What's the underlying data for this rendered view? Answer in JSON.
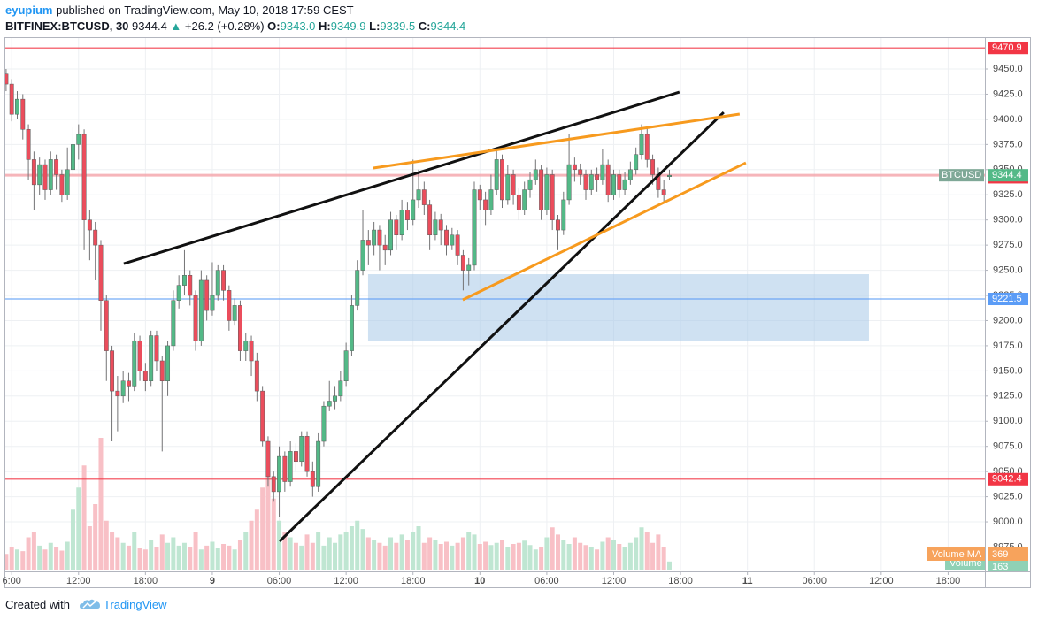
{
  "header": {
    "author": "eyupium",
    "published": "published on TradingView.com, May 10, 2018 17:59 CEST",
    "symbol": "BITFINEX:BTCUSD, 30",
    "last": "9344.4",
    "arrow": "▲",
    "change": "+26.2 (+0.28%)",
    "o_label": "O:",
    "o": "9343.0",
    "h_label": "H:",
    "h": "9349.9",
    "l_label": "L:",
    "l": "9339.5",
    "c_label": "C:",
    "c": "9344.4"
  },
  "footer": {
    "created": "Created with",
    "brand": "TradingView"
  },
  "chart_data": {
    "type": "candlestick",
    "up_color": "#53b987",
    "down_color": "#eb4d5c",
    "up_volume_color": "#bfe6d2",
    "down_volume_color": "#f8c0c6",
    "x": [
      -18.5,
      -18,
      -17.5,
      -17,
      -16.5,
      -16,
      -15.5,
      -15,
      -14.5,
      -14,
      -13.5,
      -13,
      -12.5,
      -12,
      -11.5,
      -11,
      -10.5,
      -10,
      -9.5,
      -9,
      -8.5,
      -8,
      -7.5,
      -7,
      -6.5,
      -6,
      -5.5,
      -5,
      -4.5,
      -4,
      -3.5,
      -3,
      -2.5,
      -2,
      -1.5,
      -1,
      -0.5,
      0,
      0.5,
      1,
      1.5,
      2,
      2.5,
      3,
      3.5,
      4,
      4.5,
      5,
      5.5,
      6,
      6.5,
      7,
      7.5,
      8,
      8.5,
      9,
      9.5,
      10,
      10.5,
      11,
      11.5,
      12,
      12.5,
      13,
      13.5,
      14,
      14.5,
      15,
      15.5,
      16,
      16.5,
      17,
      17.5,
      18,
      18.5,
      19,
      19.5,
      20,
      20.5,
      21,
      21.5,
      22,
      22.5,
      23,
      23.5,
      24,
      24.5,
      25,
      25.5,
      26,
      26.5,
      27,
      27.5,
      28,
      28.5,
      29,
      29.5,
      30,
      30.5,
      31,
      31.5,
      32,
      32.5,
      33,
      33.5,
      34,
      34.5,
      35,
      35.5,
      36,
      36.5,
      37,
      37.5,
      38,
      38.5,
      39,
      39.5,
      40,
      40.5,
      41
    ],
    "ohlc": [
      [
        9445,
        9450,
        9428,
        9435
      ],
      [
        9435,
        9440,
        9398,
        9405
      ],
      [
        9405,
        9428,
        9400,
        9420
      ],
      [
        9420,
        9425,
        9380,
        9390
      ],
      [
        9390,
        9395,
        9340,
        9360
      ],
      [
        9360,
        9368,
        9310,
        9335
      ],
      [
        9335,
        9362,
        9325,
        9355
      ],
      [
        9355,
        9360,
        9320,
        9330
      ],
      [
        9330,
        9368,
        9325,
        9360
      ],
      [
        9360,
        9365,
        9330,
        9345
      ],
      [
        9345,
        9350,
        9318,
        9325
      ],
      [
        9325,
        9372,
        9320,
        9350
      ],
      [
        9350,
        9392,
        9345,
        9375
      ],
      [
        9375,
        9395,
        9360,
        9385
      ],
      [
        9385,
        9390,
        9270,
        9300
      ],
      [
        9300,
        9310,
        9260,
        9290
      ],
      [
        9290,
        9298,
        9240,
        9275
      ],
      [
        9275,
        9280,
        9190,
        9220
      ],
      [
        9220,
        9225,
        9140,
        9170
      ],
      [
        9170,
        9175,
        9080,
        9130
      ],
      [
        9130,
        9145,
        9090,
        9125
      ],
      [
        9125,
        9150,
        9118,
        9140
      ],
      [
        9140,
        9148,
        9120,
        9135
      ],
      [
        9135,
        9188,
        9130,
        9180
      ],
      [
        9180,
        9185,
        9140,
        9150
      ],
      [
        9150,
        9158,
        9130,
        9140
      ],
      [
        9140,
        9190,
        9135,
        9185
      ],
      [
        9185,
        9190,
        9150,
        9160
      ],
      [
        9160,
        9165,
        9070,
        9140
      ],
      [
        9140,
        9180,
        9125,
        9175
      ],
      [
        9175,
        9230,
        9170,
        9220
      ],
      [
        9220,
        9245,
        9212,
        9235
      ],
      [
        9235,
        9270,
        9225,
        9245
      ],
      [
        9245,
        9250,
        9215,
        9225
      ],
      [
        9225,
        9230,
        9170,
        9180
      ],
      [
        9180,
        9250,
        9175,
        9240
      ],
      [
        9240,
        9245,
        9200,
        9210
      ],
      [
        9210,
        9258,
        9205,
        9225
      ],
      [
        9225,
        9255,
        9220,
        9250
      ],
      [
        9250,
        9255,
        9220,
        9230
      ],
      [
        9230,
        9235,
        9190,
        9200
      ],
      [
        9200,
        9222,
        9195,
        9215
      ],
      [
        9215,
        9220,
        9160,
        9170
      ],
      [
        9170,
        9188,
        9160,
        9180
      ],
      [
        9180,
        9185,
        9145,
        9160
      ],
      [
        9160,
        9168,
        9120,
        9130
      ],
      [
        9130,
        9135,
        9075,
        9080
      ],
      [
        9080,
        9085,
        9035,
        9045
      ],
      [
        9045,
        9050,
        9020,
        9030
      ],
      [
        9030,
        9075,
        9005,
        9065
      ],
      [
        9065,
        9070,
        9030,
        9040
      ],
      [
        9040,
        9080,
        9035,
        9070
      ],
      [
        9070,
        9078,
        9050,
        9060
      ],
      [
        9060,
        9090,
        9055,
        9085
      ],
      [
        9085,
        9090,
        9045,
        9050
      ],
      [
        9050,
        9060,
        9025,
        9035
      ],
      [
        9035,
        9088,
        9030,
        9080
      ],
      [
        9080,
        9120,
        9075,
        9115
      ],
      [
        9115,
        9140,
        9110,
        9120
      ],
      [
        9120,
        9135,
        9112,
        9125
      ],
      [
        9125,
        9150,
        9120,
        9140
      ],
      [
        9140,
        9178,
        9135,
        9170
      ],
      [
        9170,
        9225,
        9165,
        9215
      ],
      [
        9215,
        9260,
        9210,
        9250
      ],
      [
        9250,
        9310,
        9245,
        9280
      ],
      [
        9280,
        9290,
        9255,
        9275
      ],
      [
        9275,
        9298,
        9265,
        9290
      ],
      [
        9290,
        9295,
        9250,
        9275
      ],
      [
        9275,
        9285,
        9255,
        9270
      ],
      [
        9270,
        9308,
        9265,
        9300
      ],
      [
        9300,
        9305,
        9270,
        9285
      ],
      [
        9285,
        9320,
        9280,
        9310
      ],
      [
        9310,
        9318,
        9290,
        9300
      ],
      [
        9300,
        9360,
        9295,
        9320
      ],
      [
        9320,
        9350,
        9312,
        9330
      ],
      [
        9330,
        9338,
        9305,
        9315
      ],
      [
        9315,
        9320,
        9270,
        9285
      ],
      [
        9285,
        9308,
        9280,
        9300
      ],
      [
        9300,
        9306,
        9275,
        9290
      ],
      [
        9290,
        9295,
        9265,
        9275
      ],
      [
        9275,
        9292,
        9270,
        9285
      ],
      [
        9285,
        9290,
        9255,
        9265
      ],
      [
        9265,
        9270,
        9230,
        9250
      ],
      [
        9250,
        9262,
        9235,
        9255
      ],
      [
        9255,
        9338,
        9250,
        9330
      ],
      [
        9330,
        9335,
        9310,
        9320
      ],
      [
        9320,
        9328,
        9295,
        9310
      ],
      [
        9310,
        9345,
        9305,
        9330
      ],
      [
        9330,
        9370,
        9325,
        9360
      ],
      [
        9360,
        9365,
        9312,
        9320
      ],
      [
        9320,
        9355,
        9315,
        9345
      ],
      [
        9345,
        9350,
        9315,
        9325
      ],
      [
        9325,
        9332,
        9300,
        9310
      ],
      [
        9310,
        9338,
        9305,
        9330
      ],
      [
        9330,
        9348,
        9322,
        9340
      ],
      [
        9340,
        9360,
        9335,
        9350
      ],
      [
        9350,
        9355,
        9300,
        9310
      ],
      [
        9310,
        9352,
        9305,
        9345
      ],
      [
        9345,
        9350,
        9290,
        9300
      ],
      [
        9300,
        9305,
        9270,
        9290
      ],
      [
        9290,
        9328,
        9285,
        9320
      ],
      [
        9320,
        9385,
        9315,
        9355
      ],
      [
        9355,
        9362,
        9338,
        9350
      ],
      [
        9350,
        9356,
        9335,
        9345
      ],
      [
        9345,
        9350,
        9320,
        9330
      ],
      [
        9330,
        9350,
        9325,
        9345
      ],
      [
        9345,
        9352,
        9328,
        9340
      ],
      [
        9340,
        9370,
        9335,
        9355
      ],
      [
        9355,
        9360,
        9318,
        9325
      ],
      [
        9325,
        9350,
        9320,
        9345
      ],
      [
        9345,
        9350,
        9322,
        9330
      ],
      [
        9330,
        9348,
        9325,
        9340
      ],
      [
        9340,
        9358,
        9335,
        9350
      ],
      [
        9350,
        9372,
        9345,
        9365
      ],
      [
        9365,
        9395,
        9360,
        9385
      ],
      [
        9385,
        9392,
        9352,
        9360
      ],
      [
        9360,
        9365,
        9335,
        9345
      ],
      [
        9345,
        9352,
        9322,
        9330
      ],
      [
        9330,
        9340,
        9318,
        9325
      ],
      [
        9343,
        9349.9,
        9339.5,
        9344.4
      ]
    ],
    "volume": [
      300,
      420,
      380,
      350,
      600,
      700,
      450,
      380,
      500,
      420,
      360,
      520,
      1100,
      1500,
      1900,
      800,
      1200,
      2400,
      900,
      700,
      600,
      500,
      450,
      700,
      400,
      380,
      550,
      420,
      650,
      500,
      600,
      450,
      500,
      420,
      700,
      380,
      450,
      520,
      400,
      480,
      450,
      380,
      560,
      700,
      900,
      1100,
      1500,
      1800,
      1300,
      900,
      700,
      600,
      500,
      450,
      650,
      500,
      700,
      450,
      600,
      500,
      650,
      700,
      800,
      900,
      750,
      600,
      550,
      500,
      450,
      600,
      500,
      650,
      550,
      700,
      800,
      500,
      600,
      550,
      480,
      520,
      450,
      500,
      600,
      700,
      650,
      480,
      520,
      460,
      500,
      550,
      420,
      480,
      500,
      540,
      460,
      380,
      420,
      600,
      780,
      650,
      550,
      480,
      600,
      500,
      460,
      420,
      380,
      520,
      600,
      560,
      480,
      420,
      500,
      600,
      780,
      700,
      500,
      650,
      420,
      163
    ],
    "volume_label": "Volume",
    "volume_ma_label": "Volume MA",
    "volume_ma": 369,
    "xlim": [
      -18.65,
      69.3
    ],
    "ylim": [
      8951.7,
      9483.4
    ],
    "xticks": [
      {
        "value": -18,
        "label": "6:00"
      },
      {
        "value": -12,
        "label": "12:00"
      },
      {
        "value": -6,
        "label": "18:00"
      },
      {
        "value": 0,
        "label": "9"
      },
      {
        "value": 6,
        "label": "06:00"
      },
      {
        "value": 12,
        "label": "12:00"
      },
      {
        "value": 18,
        "label": "18:00"
      },
      {
        "value": 24,
        "label": "10"
      },
      {
        "value": 30,
        "label": "06:00"
      },
      {
        "value": 36,
        "label": "12:00"
      },
      {
        "value": 42,
        "label": "18:00"
      },
      {
        "value": 48,
        "label": "11"
      },
      {
        "value": 54,
        "label": "06:00"
      },
      {
        "value": 60,
        "label": "12:00"
      },
      {
        "value": 66,
        "label": "18:00"
      }
    ],
    "yticks": [
      {
        "value": 8975,
        "label": "8975.0"
      },
      {
        "value": 9000,
        "label": "9000.0"
      },
      {
        "value": 9025,
        "label": "9025.0"
      },
      {
        "value": 9050,
        "label": "9050.0"
      },
      {
        "value": 9075,
        "label": "9075.0"
      },
      {
        "value": 9100,
        "label": "9100.0"
      },
      {
        "value": 9125,
        "label": "9125.0"
      },
      {
        "value": 9150,
        "label": "9150.0"
      },
      {
        "value": 9175,
        "label": "9175.0"
      },
      {
        "value": 9200,
        "label": "9200.0"
      },
      {
        "value": 9225,
        "label": "9225.0"
      },
      {
        "value": 9250,
        "label": "9250.0"
      },
      {
        "value": 9275,
        "label": "9275.0"
      },
      {
        "value": 9300,
        "label": "9300.0"
      },
      {
        "value": 9325,
        "label": "9325.0"
      },
      {
        "value": 9350,
        "label": "9350.0"
      },
      {
        "value": 9375,
        "label": "9375.0"
      },
      {
        "value": 9400,
        "label": "9400.0"
      },
      {
        "value": 9425,
        "label": "9425.0"
      },
      {
        "value": 9450,
        "label": "9450.0"
      }
    ],
    "grid": true,
    "levels": [
      {
        "value": 9470.9,
        "color": "#f23645",
        "line": true
      },
      {
        "value": 9042.4,
        "color": "#f23645",
        "line": true
      },
      {
        "value": 9221.5,
        "color": "#5b9cf6",
        "line": true
      },
      {
        "value": 9342.4,
        "color": "#f23645",
        "line": false
      }
    ],
    "last_price": {
      "name": "BTCUSD",
      "value": 9344.4,
      "color": "#53b987",
      "line_color": "#f4a3a9"
    },
    "zone": {
      "x": [
        13.97,
        58.9
      ],
      "y": [
        9180.2,
        9246.1
      ],
      "color": "#a8c8e8"
    },
    "trendlines": [
      {
        "color": "#111111",
        "x": [
          -7.94,
          41.9
        ],
        "y": [
          9256.6,
          9427.1
        ]
      },
      {
        "color": "#111111",
        "x": [
          6.03,
          45.87
        ],
        "y": [
          8980.7,
          9406.9
        ]
      },
      {
        "color": "#f79a1e",
        "x": [
          14.44,
          47.3
        ],
        "y": [
          9351.6,
          9405.2
        ]
      },
      {
        "color": "#f79a1e",
        "x": [
          22.46,
          47.86
        ],
        "y": [
          9220.6,
          9356.8
        ]
      }
    ]
  }
}
